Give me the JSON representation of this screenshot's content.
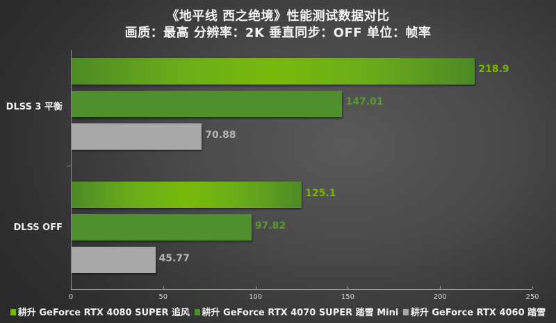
{
  "chart_data": {
    "type": "bar",
    "orientation": "horizontal",
    "title": "《地平线 西之绝境》性能测试数据对比",
    "subtitle": "画质：最高 分辨率：2K 垂直同步：OFF 单位：帧率",
    "categories": [
      "DLSS 3 平衡",
      "DLSS OFF"
    ],
    "series": [
      {
        "name": "耕升 GeForce RTX 4080 SUPER 追风",
        "color": "#76b900",
        "values": [
          218.9,
          125.1
        ]
      },
      {
        "name": "耕升 GeForce RTX 4070 SUPER 踏雪 Mini",
        "color": "#508f2e",
        "values": [
          147.01,
          97.82
        ]
      },
      {
        "name": "耕升 GeForce RTX 4060 踏雪",
        "color": "#a8a8a8",
        "values": [
          70.88,
          45.77
        ]
      }
    ],
    "value_labels": [
      [
        "218.9",
        "147.01",
        "70.88"
      ],
      [
        "125.1",
        "97.82",
        "45.77"
      ]
    ],
    "xlim": [
      0,
      250
    ],
    "xticks": [
      "0",
      "50",
      "100",
      "150",
      "200",
      "250"
    ],
    "xlabel": "",
    "ylabel": "",
    "grid": false,
    "legend_position": "bottom"
  }
}
